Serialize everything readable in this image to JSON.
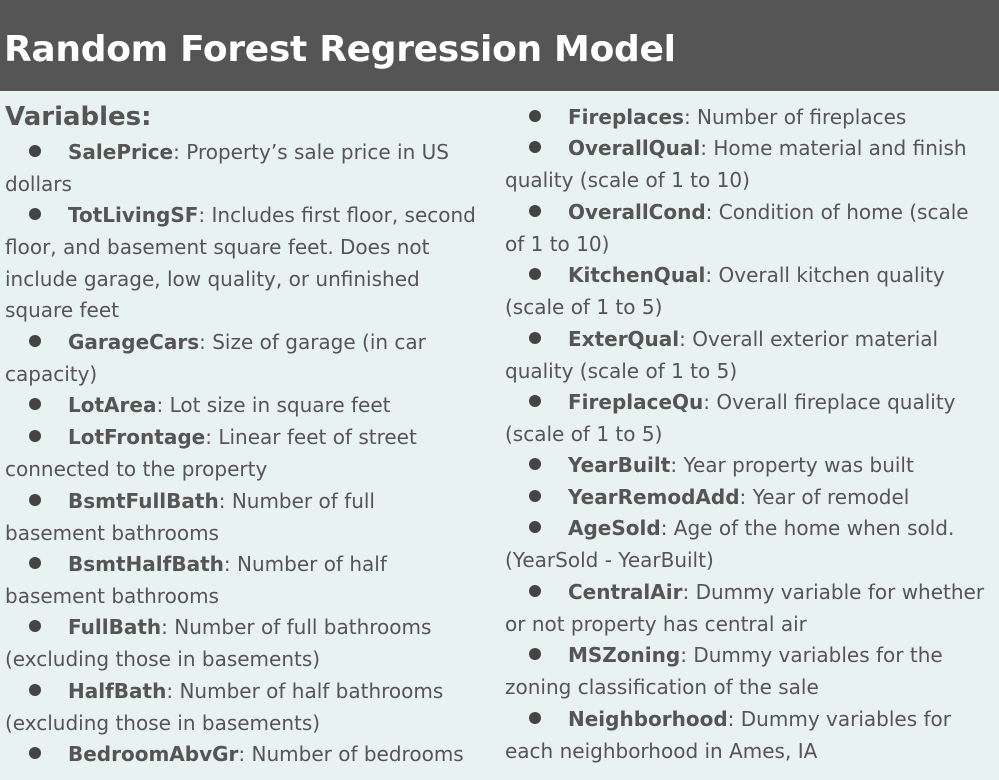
{
  "title": "Random Forest Regression Model",
  "section_heading": "Variables:",
  "left_items": [
    {
      "name": "SalePrice",
      "description": "Property’s sale price in US dollars"
    },
    {
      "name": "TotLivingSF",
      "description": "Includes first floor, second floor, and basement square feet. Does not include garage, low quality, or unfinished square feet"
    },
    {
      "name": "GarageCars",
      "description": "Size of garage (in car capacity)"
    },
    {
      "name": "LotArea",
      "description": "Lot size in square feet"
    },
    {
      "name": "LotFrontage",
      "description": "Linear feet of street connected to the property"
    },
    {
      "name": "BsmtFullBath",
      "description": "Number of full basement bathrooms"
    },
    {
      "name": "BsmtHalfBath",
      "description": "Number of half basement bathrooms"
    },
    {
      "name": "FullBath",
      "description": "Number of full bathrooms (excluding those in basements)"
    },
    {
      "name": "HalfBath",
      "description": "Number of half bathrooms (excluding those in basements)"
    },
    {
      "name": "BedroomAbvGr",
      "description": "Number of bedrooms"
    }
  ],
  "right_items": [
    {
      "name": "Fireplaces",
      "description": "Number of fireplaces"
    },
    {
      "name": "OverallQual",
      "description": "Home material and finish quality (scale of 1 to 10)"
    },
    {
      "name": "OverallCond",
      "description": "Condition of home (scale of 1 to 10)"
    },
    {
      "name": "KitchenQual",
      "description": "Overall kitchen quality (scale of 1 to 5)"
    },
    {
      "name": "ExterQual",
      "description": "Overall exterior material quality (scale of 1 to 5)"
    },
    {
      "name": "FireplaceQu",
      "description": "Overall fireplace quality (scale of 1 to 5)"
    },
    {
      "name": "YearBuilt",
      "description": "Year property was built"
    },
    {
      "name": "YearRemodAdd",
      "description": "Year of remodel"
    },
    {
      "name": "AgeSold",
      "description": "Age of the home when sold. (YearSold - YearBuilt)"
    },
    {
      "name": "CentralAir",
      "description": "Dummy variable for whether or not property has central air"
    },
    {
      "name": "MSZoning",
      "description": "Dummy variables for the zoning classification of the sale"
    },
    {
      "name": "Neighborhood",
      "description": "Dummy variables for each neighborhood in Ames, IA"
    }
  ]
}
